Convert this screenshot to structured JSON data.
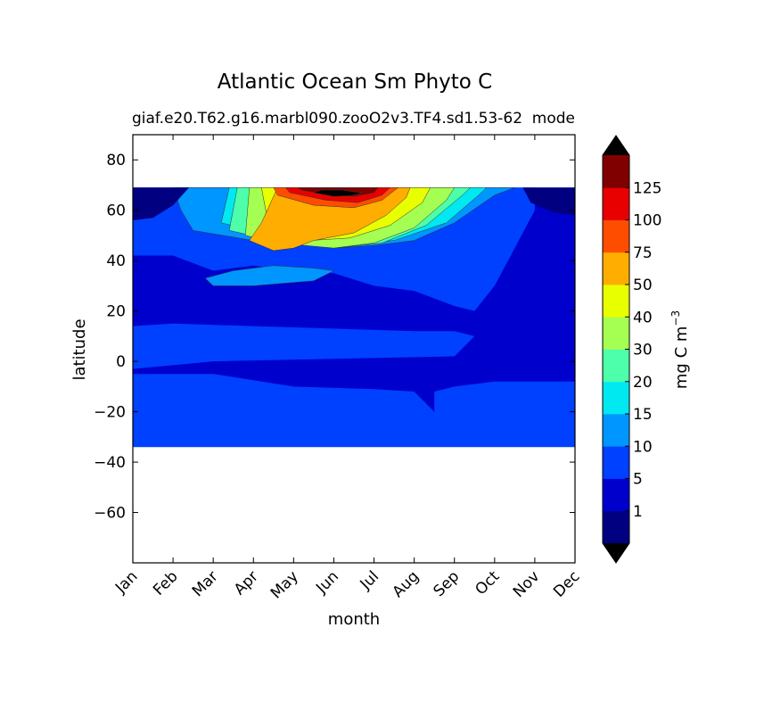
{
  "chart_data": {
    "type": "heatmap",
    "title": "Atlantic Ocean Sm Phyto C",
    "subtitle_left": "giaf.e20.T62.g16.marbl090.zooO2v3.TF4.sd1.53-62",
    "subtitle_right": "mode",
    "xlabel": "month",
    "ylabel": "latitude",
    "x_ticks": [
      "Jan",
      "Feb",
      "Mar",
      "Apr",
      "May",
      "Jun",
      "Jul",
      "Aug",
      "Sep",
      "Oct",
      "Nov",
      "Dec"
    ],
    "y_ticks": [
      80,
      60,
      40,
      20,
      0,
      -20,
      -40,
      -60
    ],
    "ylim": [
      -80,
      90
    ],
    "data_lat_range": [
      -34,
      69
    ],
    "colorbar": {
      "label": "mg C m",
      "label_superscript": "−3",
      "extend": "both",
      "ticks": [
        "1",
        "5",
        "10",
        "15",
        "20",
        "30",
        "40",
        "50",
        "75",
        "100",
        "125"
      ],
      "colors": [
        "#000080",
        "#0000cd",
        "#0040ff",
        "#0096ff",
        "#00e8f0",
        "#4dffaa",
        "#a4ff52",
        "#e8ff00",
        "#ffad00",
        "#ff4d00",
        "#e80000",
        "#800000"
      ],
      "under_color": "#000000",
      "over_color": "#000000"
    },
    "levels_note_colors": {
      "background": "#0000cd",
      "south_north_band": "#0040ff"
    },
    "contour_regions": [
      {
        "level": 2,
        "points": [
          [
            0,
            42
          ],
          [
            1,
            42
          ],
          [
            2,
            36
          ],
          [
            3,
            38
          ],
          [
            4,
            36
          ],
          [
            5,
            35
          ],
          [
            6,
            30
          ],
          [
            7,
            28
          ],
          [
            8,
            22
          ],
          [
            8.5,
            20
          ],
          [
            9,
            30
          ],
          [
            9.5,
            45
          ],
          [
            10,
            60
          ],
          [
            10,
            69
          ],
          [
            0,
            69
          ]
        ]
      },
      {
        "level": 2,
        "points": [
          [
            0,
            14
          ],
          [
            1,
            15
          ],
          [
            3,
            14
          ],
          [
            5,
            13
          ],
          [
            7,
            12
          ],
          [
            8,
            12
          ],
          [
            8.5,
            10
          ],
          [
            8,
            2
          ],
          [
            5,
            1
          ],
          [
            2,
            0
          ],
          [
            0,
            -3
          ]
        ]
      },
      {
        "level": 2,
        "points": [
          [
            0,
            -5
          ],
          [
            2,
            -5
          ],
          [
            4,
            -10
          ],
          [
            6,
            -11
          ],
          [
            7,
            -12
          ],
          [
            7.5,
            -20
          ],
          [
            8,
            -25
          ],
          [
            9,
            -28
          ],
          [
            10,
            -30
          ],
          [
            11,
            -31
          ],
          [
            11,
            -34
          ],
          [
            0,
            -34
          ]
        ]
      },
      {
        "level": 2,
        "points": [
          [
            7.5,
            -12
          ],
          [
            8,
            -10
          ],
          [
            9,
            -8
          ],
          [
            11,
            -8
          ],
          [
            11,
            -34
          ],
          [
            9,
            -32
          ],
          [
            8,
            -28
          ],
          [
            7.5,
            -20
          ]
        ]
      },
      {
        "level": 3,
        "points": [
          [
            1.8,
            33
          ],
          [
            2.5,
            36
          ],
          [
            3.5,
            38
          ],
          [
            4.5,
            37
          ],
          [
            5,
            36
          ],
          [
            4.5,
            32
          ],
          [
            3,
            30
          ],
          [
            2,
            30
          ]
        ]
      },
      {
        "level": 3,
        "points": [
          [
            1.5,
            52
          ],
          [
            3,
            48
          ],
          [
            5,
            45
          ],
          [
            6,
            46
          ],
          [
            7,
            48
          ],
          [
            8,
            55
          ],
          [
            9,
            66
          ],
          [
            9.5,
            69
          ],
          [
            1,
            69
          ],
          [
            1.2,
            60
          ]
        ]
      },
      {
        "level": 4,
        "points": [
          [
            2.2,
            55
          ],
          [
            3.5,
            50
          ],
          [
            5,
            46
          ],
          [
            6.5,
            48
          ],
          [
            7.8,
            55
          ],
          [
            8.6,
            66
          ],
          [
            8.8,
            69
          ],
          [
            2.4,
            69
          ]
        ]
      },
      {
        "level": 5,
        "points": [
          [
            2.4,
            52
          ],
          [
            3.5,
            48
          ],
          [
            5,
            45
          ],
          [
            6.2,
            47
          ],
          [
            7.3,
            54
          ],
          [
            8.2,
            66
          ],
          [
            8.4,
            69
          ],
          [
            2.6,
            69
          ]
        ]
      },
      {
        "level": 6,
        "points": [
          [
            2.8,
            50
          ],
          [
            3.6,
            47
          ],
          [
            5,
            45
          ],
          [
            6,
            47
          ],
          [
            7,
            53
          ],
          [
            7.8,
            64
          ],
          [
            8,
            69
          ],
          [
            2.9,
            69
          ]
        ]
      },
      {
        "level": 7,
        "points": [
          [
            3.4,
            52
          ],
          [
            4.4,
            48
          ],
          [
            5.4,
            49
          ],
          [
            6.4,
            54
          ],
          [
            7.2,
            63
          ],
          [
            7.4,
            69
          ],
          [
            3.2,
            69
          ]
        ]
      },
      {
        "level": 8,
        "points": [
          [
            2.9,
            48
          ],
          [
            3.5,
            44
          ],
          [
            4,
            45
          ],
          [
            4.5,
            48
          ],
          [
            5.5,
            51
          ],
          [
            6.3,
            58
          ],
          [
            6.8,
            65
          ],
          [
            6.9,
            69
          ],
          [
            3.6,
            69
          ],
          [
            3.2,
            55
          ]
        ]
      },
      {
        "level": 9,
        "points": [
          [
            3.6,
            66
          ],
          [
            4.5,
            62
          ],
          [
            5.5,
            61
          ],
          [
            6.2,
            64
          ],
          [
            6.6,
            69
          ],
          [
            3.5,
            69
          ]
        ]
      },
      {
        "level": 10,
        "points": [
          [
            3.9,
            67
          ],
          [
            4.8,
            64
          ],
          [
            5.6,
            63
          ],
          [
            6.2,
            66
          ],
          [
            6.4,
            69
          ],
          [
            3.8,
            69
          ]
        ]
      },
      {
        "level": 11,
        "points": [
          [
            4.2,
            68
          ],
          [
            4.9,
            66
          ],
          [
            5.5,
            65.5
          ],
          [
            6,
            67
          ],
          [
            6.1,
            69
          ],
          [
            4.1,
            69
          ]
        ]
      },
      {
        "level": 12,
        "points": [
          [
            4.5,
            67
          ],
          [
            5,
            65.5
          ],
          [
            5.4,
            65.8
          ],
          [
            5.7,
            66.8
          ],
          [
            5.2,
            68
          ],
          [
            4.7,
            68
          ]
        ]
      },
      {
        "level": 0,
        "points": [
          [
            0,
            69
          ],
          [
            0,
            56
          ],
          [
            0.5,
            57
          ],
          [
            1,
            62
          ],
          [
            1.4,
            69
          ]
        ]
      },
      {
        "level": 0,
        "points": [
          [
            11,
            69
          ],
          [
            11,
            58
          ],
          [
            10.5,
            59
          ],
          [
            9.9,
            63
          ],
          [
            9.7,
            69
          ]
        ]
      }
    ]
  }
}
